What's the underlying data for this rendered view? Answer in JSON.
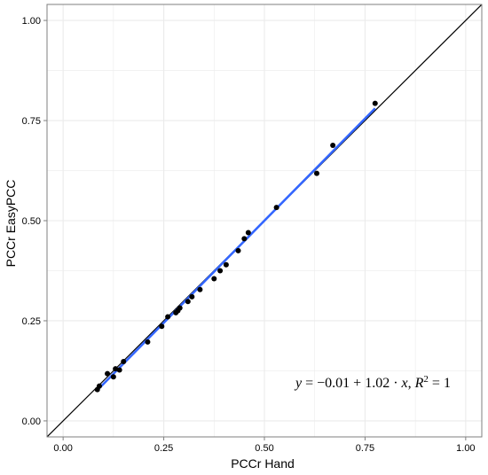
{
  "chart_data": {
    "type": "scatter",
    "xlabel": "PCCr Hand",
    "ylabel": "PCCr EasyPCC",
    "xlim": [
      -0.04,
      1.04
    ],
    "ylim": [
      -0.04,
      1.04
    ],
    "x_ticks": [
      0.0,
      0.25,
      0.5,
      0.75,
      1.0
    ],
    "y_ticks": [
      0.0,
      0.25,
      0.5,
      0.75,
      1.0
    ],
    "x_tick_labels": [
      "0.00",
      "0.25",
      "0.50",
      "0.75",
      "1.00"
    ],
    "y_tick_labels": [
      "0.00",
      "0.25",
      "0.50",
      "0.75",
      "1.00"
    ],
    "grid": true,
    "points": [
      {
        "x": 0.085,
        "y": 0.078
      },
      {
        "x": 0.09,
        "y": 0.087
      },
      {
        "x": 0.11,
        "y": 0.118
      },
      {
        "x": 0.125,
        "y": 0.11
      },
      {
        "x": 0.13,
        "y": 0.13
      },
      {
        "x": 0.14,
        "y": 0.127
      },
      {
        "x": 0.15,
        "y": 0.148
      },
      {
        "x": 0.21,
        "y": 0.197
      },
      {
        "x": 0.245,
        "y": 0.236
      },
      {
        "x": 0.26,
        "y": 0.26
      },
      {
        "x": 0.28,
        "y": 0.27
      },
      {
        "x": 0.285,
        "y": 0.275
      },
      {
        "x": 0.29,
        "y": 0.282
      },
      {
        "x": 0.31,
        "y": 0.298
      },
      {
        "x": 0.32,
        "y": 0.31
      },
      {
        "x": 0.34,
        "y": 0.328
      },
      {
        "x": 0.375,
        "y": 0.355
      },
      {
        "x": 0.39,
        "y": 0.375
      },
      {
        "x": 0.405,
        "y": 0.39
      },
      {
        "x": 0.435,
        "y": 0.425
      },
      {
        "x": 0.45,
        "y": 0.455
      },
      {
        "x": 0.46,
        "y": 0.47
      },
      {
        "x": 0.53,
        "y": 0.533
      },
      {
        "x": 0.63,
        "y": 0.618
      },
      {
        "x": 0.67,
        "y": 0.688
      },
      {
        "x": 0.775,
        "y": 0.793
      }
    ],
    "regression": {
      "intercept": -0.01,
      "slope": 1.02,
      "x_range": [
        0.085,
        0.775
      ],
      "color": "#3366FF"
    },
    "reference_line": {
      "slope": 1,
      "intercept": 0,
      "color": "#000000"
    },
    "annotation": {
      "y": "y",
      "equals": " = ",
      "minus": "−",
      "intercept": "0.01",
      "plus": " + ",
      "slope": "1.02",
      "dot": " · ",
      "x": "x",
      "comma": ",  ",
      "r": "R",
      "r_sup": "2",
      "r_equals": " = 1"
    },
    "colors": {
      "points": "#000000",
      "grid": "#ebebeb",
      "panel_border": "#7f7f7f"
    }
  }
}
